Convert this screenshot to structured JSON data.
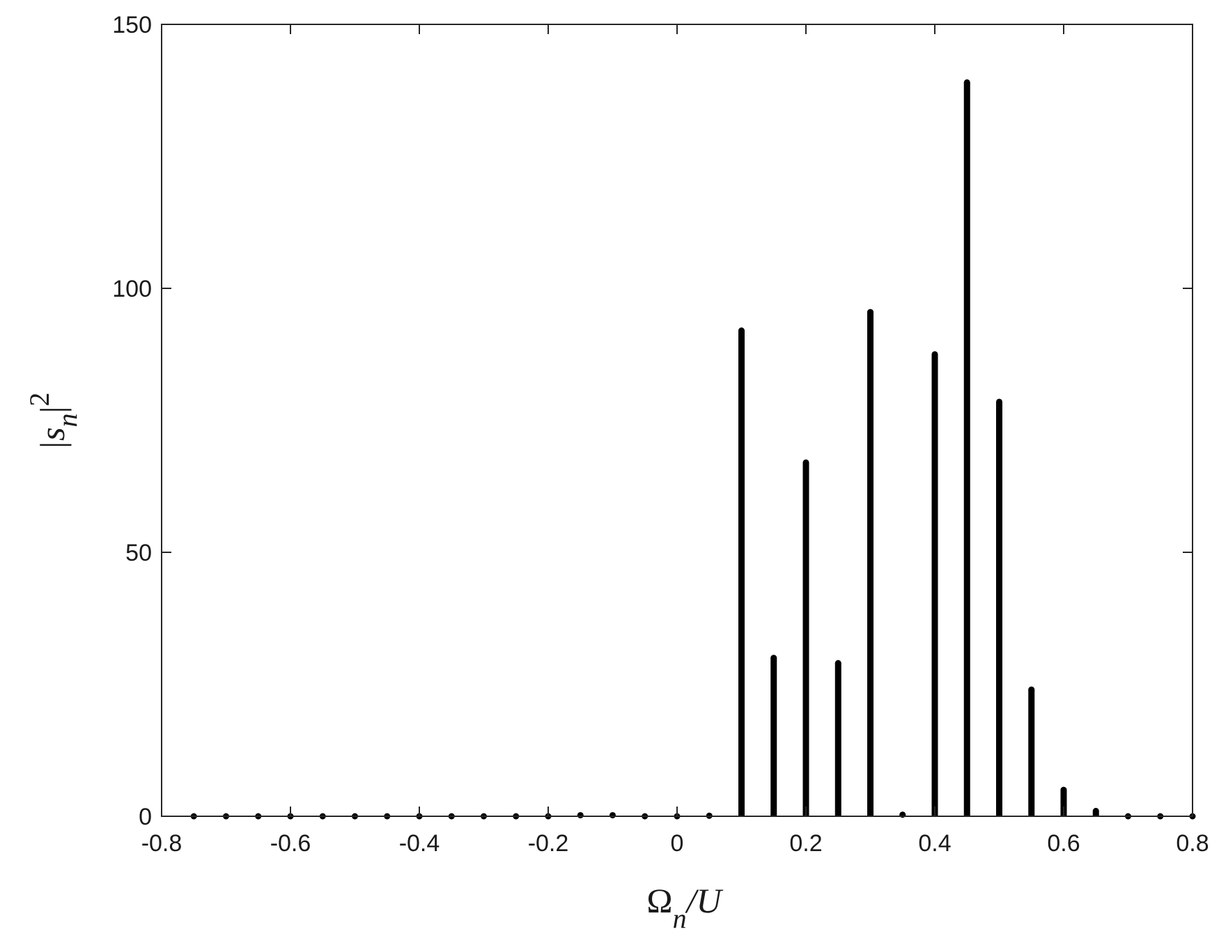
{
  "chart_data": {
    "type": "bar",
    "title": "",
    "xlabel": {
      "main": "Ω",
      "sub": "n",
      "rest": "/U"
    },
    "ylabel": {
      "main": "|s",
      "sub": "n",
      "after": "|",
      "sup": "2"
    },
    "xlim": [
      -0.8,
      0.8
    ],
    "ylim": [
      0,
      150
    ],
    "xticks": [
      -0.8,
      -0.6,
      -0.4,
      -0.2,
      0,
      0.2,
      0.4,
      0.6,
      0.8
    ],
    "xtick_labels": [
      "-0.8",
      "-0.6",
      "-0.4",
      "-0.2",
      "0",
      "0.2",
      "0.4",
      "0.6",
      "0.8"
    ],
    "yticks": [
      0,
      50,
      100,
      150
    ],
    "ytick_labels": [
      "0",
      "50",
      "100",
      "150"
    ],
    "grid": false,
    "legend": "none",
    "bar_color": "#000000",
    "x": [
      -0.75,
      -0.7,
      -0.65,
      -0.6,
      -0.55,
      -0.5,
      -0.45,
      -0.4,
      -0.35,
      -0.3,
      -0.25,
      -0.2,
      -0.15,
      -0.1,
      -0.05,
      0,
      0.05,
      0.1,
      0.15,
      0.2,
      0.25,
      0.3,
      0.35,
      0.4,
      0.45,
      0.5,
      0.55,
      0.6,
      0.65,
      0.7,
      0.75,
      0.8
    ],
    "values": [
      0,
      0,
      0,
      0,
      0,
      0,
      0,
      0,
      0,
      0,
      0,
      0,
      0.2,
      0.2,
      0,
      0,
      0.1,
      92,
      30,
      67,
      29,
      95.5,
      0.3,
      87.5,
      139,
      78.5,
      24,
      5,
      1,
      0,
      0,
      0
    ]
  }
}
